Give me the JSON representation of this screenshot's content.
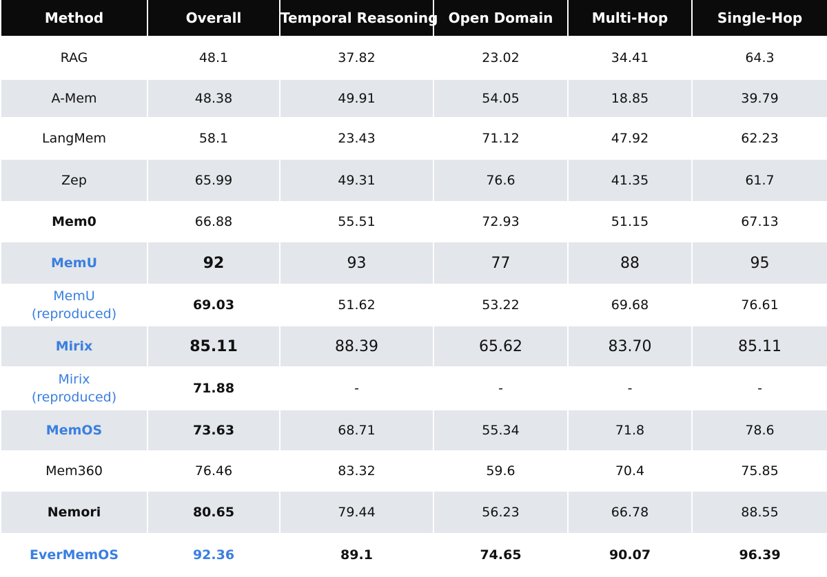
{
  "table": {
    "header": [
      "Method",
      "Overall",
      "Temporal Reasoning",
      "Open Domain",
      "Multi-Hop",
      "Single-Hop"
    ],
    "rows": [
      {
        "method": [
          "RAG"
        ],
        "values": [
          "48.1",
          "37.82",
          "23.02",
          "34.41",
          "64.3"
        ]
      },
      {
        "method": [
          "A-Mem"
        ],
        "values": [
          "48.38",
          "49.91",
          "54.05",
          "18.85",
          "39.79"
        ]
      },
      {
        "method": [
          "LangMem"
        ],
        "values": [
          "58.1",
          "23.43",
          "71.12",
          "47.92",
          "62.23"
        ]
      },
      {
        "method": [
          "Zep"
        ],
        "values": [
          "65.99",
          "49.31",
          "76.6",
          "41.35",
          "61.7"
        ]
      },
      {
        "method": [
          "Mem0"
        ],
        "values": [
          "66.88",
          "55.51",
          "72.93",
          "51.15",
          "67.13"
        ]
      },
      {
        "method": [
          "MemU"
        ],
        "values": [
          "92",
          "93",
          "77",
          "88",
          "95"
        ]
      },
      {
        "method": [
          "MemU",
          "(reproduced)"
        ],
        "values": [
          "69.03",
          "51.62",
          "53.22",
          "69.68",
          "76.61"
        ]
      },
      {
        "method": [
          "Mirix"
        ],
        "values": [
          "85.11",
          "88.39",
          "65.62",
          "83.70",
          "85.11"
        ]
      },
      {
        "method": [
          "Mirix",
          "(reproduced)"
        ],
        "values": [
          "71.88",
          "-",
          "-",
          "-",
          "-"
        ]
      },
      {
        "method": [
          "MemOS"
        ],
        "values": [
          "73.63",
          "68.71",
          "55.34",
          "71.8",
          "78.6"
        ]
      },
      {
        "method": [
          "Mem360"
        ],
        "values": [
          "76.46",
          "83.32",
          "59.6",
          "70.4",
          "75.85"
        ]
      },
      {
        "method": [
          "Nemori"
        ],
        "values": [
          "80.65",
          "79.44",
          "56.23",
          "66.78",
          "88.55"
        ]
      },
      {
        "method": [
          "EverMemOS"
        ],
        "values": [
          "92.36",
          "89.1",
          "74.65",
          "90.07",
          "96.39"
        ]
      }
    ]
  }
}
